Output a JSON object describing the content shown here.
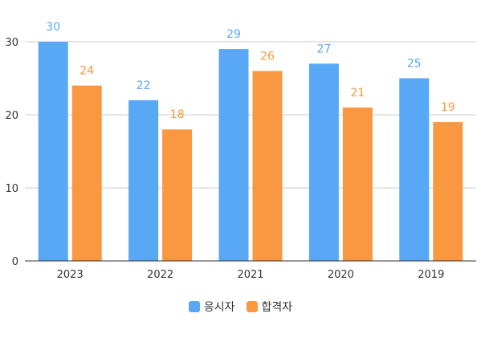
{
  "chart_data": {
    "type": "bar",
    "categories": [
      "2023",
      "2022",
      "2021",
      "2020",
      "2019"
    ],
    "series": [
      {
        "name": "응시자",
        "color": "#58a8f5",
        "values": [
          30,
          22,
          29,
          27,
          25
        ]
      },
      {
        "name": "합격자",
        "color": "#f99841",
        "values": [
          24,
          18,
          26,
          21,
          19
        ]
      }
    ],
    "ylim": [
      0,
      30
    ],
    "yticks": [
      0,
      10,
      20,
      30
    ],
    "grid": true,
    "legend_position": "bottom"
  }
}
